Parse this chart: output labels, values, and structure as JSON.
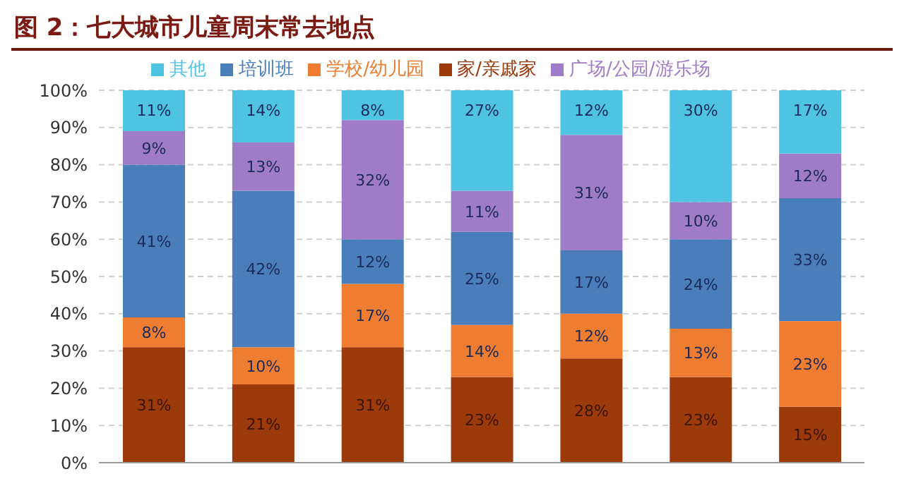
{
  "chart_data": {
    "type": "bar",
    "title": "图 2：七大城市儿童周末常去地点",
    "stacked": true,
    "categories": [
      null,
      null,
      null,
      null,
      null,
      null,
      null
    ],
    "series": [
      {
        "name": "家/亲戚家",
        "color": "#9c3a0c",
        "values": [
          31,
          21,
          31,
          23,
          28,
          23,
          15
        ],
        "value_labels": [
          "31%",
          "21%",
          "31%",
          "23%",
          "28%",
          "23%",
          "15%"
        ]
      },
      {
        "name": "学校/幼儿园",
        "color": "#ee7d32",
        "values": [
          8,
          10,
          17,
          14,
          12,
          13,
          23
        ],
        "value_labels": [
          "8%",
          "10%",
          "17%",
          "14%",
          "12%",
          "13%",
          "23%"
        ]
      },
      {
        "name": "培训班",
        "color": "#4a7ebb",
        "values": [
          41,
          42,
          12,
          25,
          17,
          24,
          33
        ],
        "value_labels": [
          "41%",
          "42%",
          "12%",
          "25%",
          "17%",
          "24%",
          "33%"
        ]
      },
      {
        "name": "广场/公园/游乐场",
        "color": "#a07cc8",
        "values": [
          9,
          13,
          32,
          11,
          31,
          10,
          12
        ],
        "value_labels": [
          "9%",
          "13%",
          "32%",
          "11%",
          "31%",
          "10%",
          "12%"
        ]
      },
      {
        "name": "其他",
        "color": "#4fc4e2",
        "values": [
          11,
          14,
          8,
          27,
          12,
          30,
          17
        ],
        "value_labels": [
          "11%",
          "14%",
          "8%",
          "27%",
          "12%",
          "30%",
          "17%"
        ]
      }
    ],
    "ylim": [
      0,
      100
    ],
    "yticks": [
      {
        "value": 0,
        "label": "0%"
      },
      {
        "value": 10,
        "label": "10%"
      },
      {
        "value": 20,
        "label": "20%"
      },
      {
        "value": 30,
        "label": "30%"
      },
      {
        "value": 40,
        "label": "40%"
      },
      {
        "value": 50,
        "label": "50%"
      },
      {
        "value": 60,
        "label": "60%"
      },
      {
        "value": 70,
        "label": "70%"
      },
      {
        "value": 80,
        "label": "80%"
      },
      {
        "value": 90,
        "label": "90%"
      },
      {
        "value": 100,
        "label": "100%"
      }
    ],
    "grid": "y",
    "legend": "top"
  }
}
